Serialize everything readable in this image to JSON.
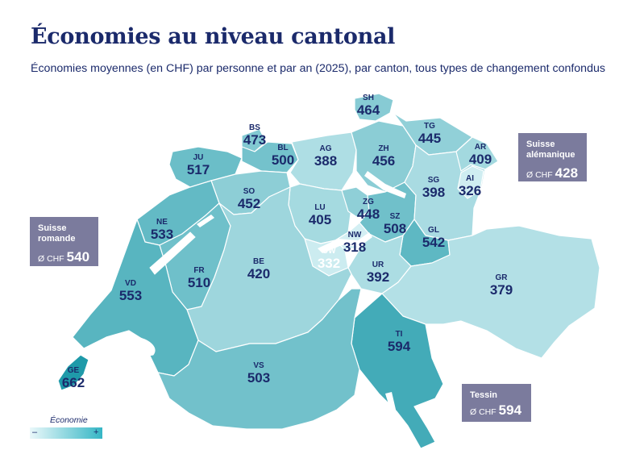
{
  "title": "Économies au niveau cantonal",
  "subtitle": "Économies moyennes (en CHF) par personne et par an (2025), par canton, tous types de changement confondus",
  "colors": {
    "title": "#1b2a6b",
    "box_bg": "#7b7b9d",
    "scale_low": "#d3eff3",
    "scale_high": "#1f9aa9",
    "lake": "#ffffff"
  },
  "cantons": [
    {
      "abbr": "SH",
      "value": 464
    },
    {
      "abbr": "BS",
      "value": 473
    },
    {
      "abbr": "TG",
      "value": 445
    },
    {
      "abbr": "JU",
      "value": 517
    },
    {
      "abbr": "BL",
      "value": 500
    },
    {
      "abbr": "AG",
      "value": 388
    },
    {
      "abbr": "ZH",
      "value": 456
    },
    {
      "abbr": "AR",
      "value": 409
    },
    {
      "abbr": "SO",
      "value": 452
    },
    {
      "abbr": "SG",
      "value": 398
    },
    {
      "abbr": "AI",
      "value": 326
    },
    {
      "abbr": "ZG",
      "value": 448
    },
    {
      "abbr": "NE",
      "value": 533
    },
    {
      "abbr": "LU",
      "value": 405
    },
    {
      "abbr": "SZ",
      "value": 508
    },
    {
      "abbr": "GL",
      "value": 542
    },
    {
      "abbr": "NW",
      "value": 318
    },
    {
      "abbr": "OW",
      "value": 332
    },
    {
      "abbr": "FR",
      "value": 510
    },
    {
      "abbr": "BE",
      "value": 420
    },
    {
      "abbr": "UR",
      "value": 392
    },
    {
      "abbr": "VD",
      "value": 553
    },
    {
      "abbr": "GR",
      "value": 379
    },
    {
      "abbr": "TI",
      "value": 594
    },
    {
      "abbr": "GE",
      "value": 662
    },
    {
      "abbr": "VS",
      "value": 503
    }
  ],
  "regions": {
    "romande": {
      "name": "Suisse romande",
      "symbol": "Ø CHF",
      "value": "540"
    },
    "alemanique": {
      "name": "Suisse alémanique",
      "symbol": "Ø CHF",
      "value": "428"
    },
    "tessin": {
      "name": "Tessin",
      "symbol": "Ø CHF",
      "value": "594"
    }
  },
  "legend": {
    "title": "Économie",
    "minus": "–",
    "plus": "+"
  }
}
